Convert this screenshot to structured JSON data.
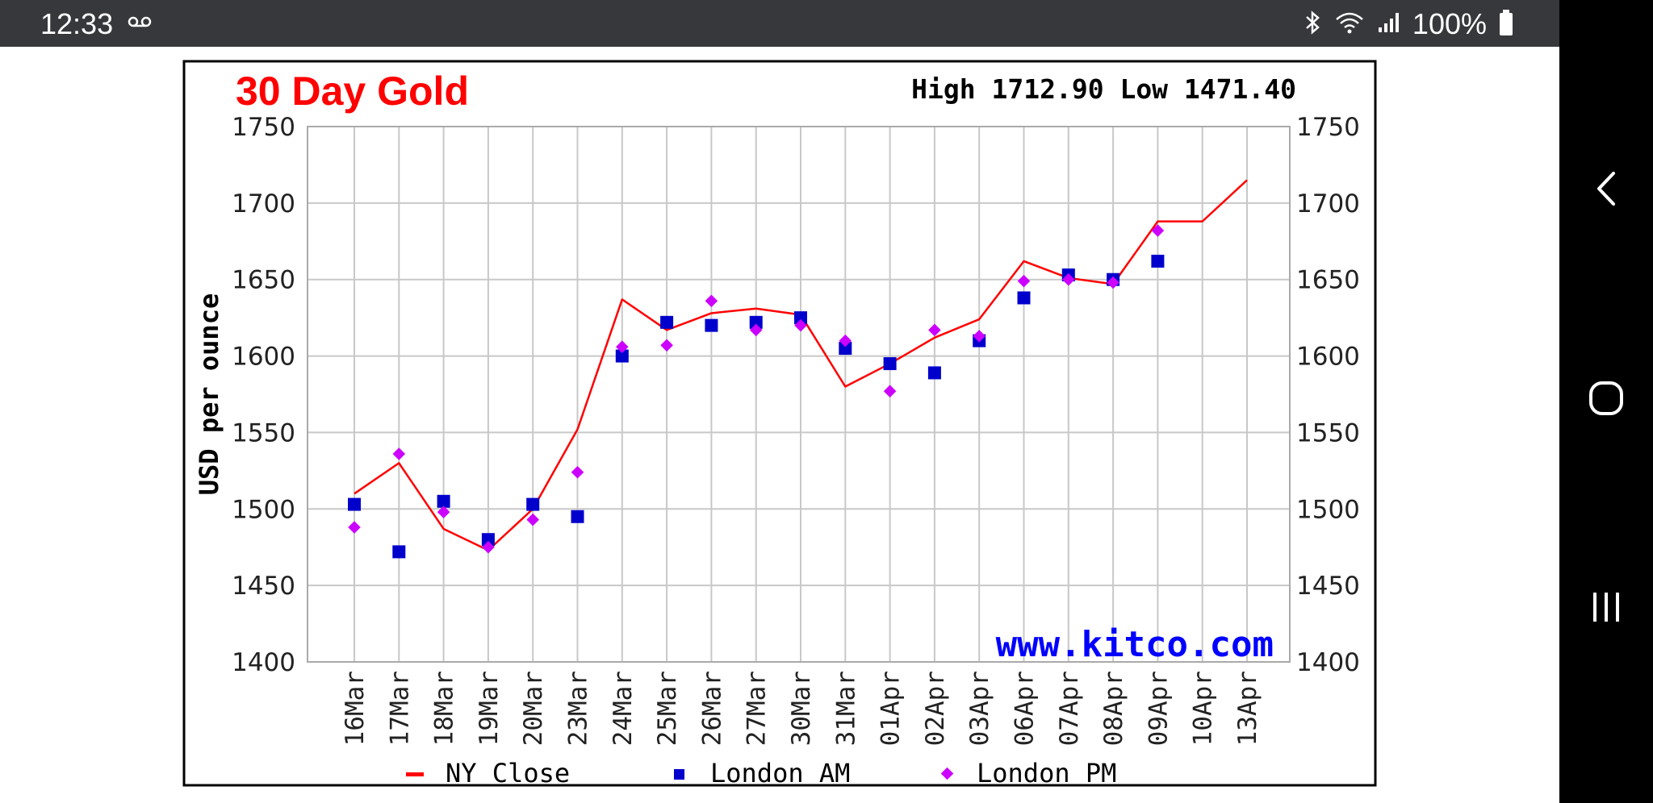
{
  "status_bar": {
    "time": "12:33",
    "battery": "100%",
    "icons": [
      "voicemail-icon",
      "bluetooth-icon",
      "wifi-icon",
      "signal-icon",
      "battery-icon"
    ]
  },
  "nav_bar": {
    "buttons": [
      "back-icon",
      "home-icon",
      "recents-icon"
    ]
  },
  "colors": {
    "ny_close": "#ff0000",
    "london_am": "#0000cc",
    "london_pm": "#cc00ff",
    "title": "#ff0000",
    "watermark": "#0000ff"
  },
  "chart_data": {
    "type": "line",
    "title": "30 Day Gold",
    "summary": "High 1712.90 Low 1471.40",
    "xlabel": "",
    "ylabel": "USD per ounce",
    "ylim": [
      1400,
      1750
    ],
    "yticks": [
      1750,
      1700,
      1650,
      1600,
      1550,
      1500,
      1450,
      1400
    ],
    "grid": true,
    "watermark": "www.kitco.com",
    "legend_position": "bottom",
    "categories": [
      "16Mar",
      "17Mar",
      "18Mar",
      "19Mar",
      "20Mar",
      "23Mar",
      "24Mar",
      "25Mar",
      "26Mar",
      "27Mar",
      "30Mar",
      "31Mar",
      "01Apr",
      "02Apr",
      "03Apr",
      "06Apr",
      "07Apr",
      "08Apr",
      "09Apr",
      "10Apr",
      "13Apr"
    ],
    "series": [
      {
        "name": "NY Close",
        "marker": "line",
        "values": [
          1510,
          1530,
          1487,
          1473,
          1500,
          1552,
          1637,
          1617,
          1628,
          1631,
          1627,
          1580,
          1595,
          1612,
          1624,
          1662,
          1651,
          1647,
          1688,
          1688,
          1715
        ]
      },
      {
        "name": "London AM",
        "marker": "square",
        "values": [
          1503,
          1472,
          1505,
          1480,
          1503,
          1495,
          1600,
          1622,
          1620,
          1622,
          1625,
          1605,
          1595,
          1589,
          1610,
          1638,
          1653,
          1650,
          1662,
          null,
          null
        ]
      },
      {
        "name": "London PM",
        "marker": "diamond",
        "values": [
          1488,
          1536,
          1498,
          1475,
          1493,
          1524,
          1606,
          1607,
          1636,
          1617,
          1620,
          1610,
          1577,
          1617,
          1613,
          1649,
          1650,
          1648,
          1682,
          null,
          null
        ]
      }
    ]
  }
}
